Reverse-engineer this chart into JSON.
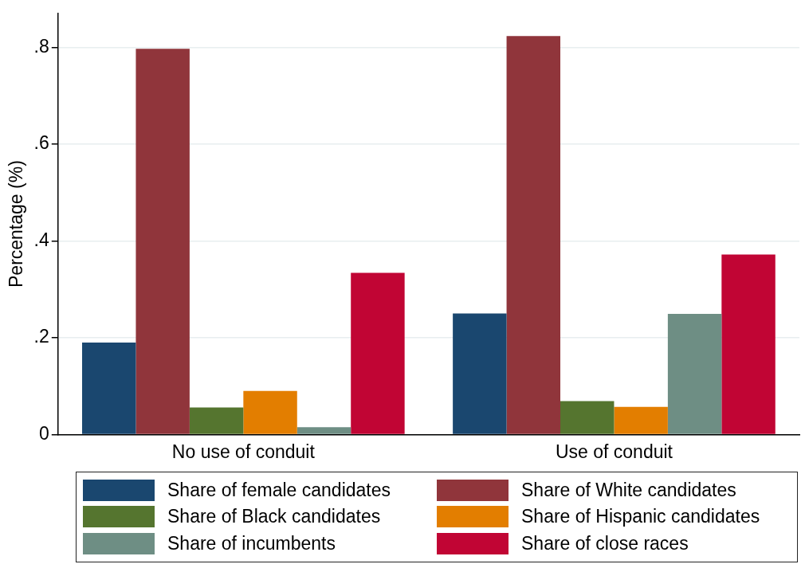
{
  "chart_data": {
    "type": "bar",
    "ylabel": "Percentage (%)",
    "categories": [
      "No use of conduit",
      "Use of conduit"
    ],
    "series": [
      {
        "name": "Share of female candidates",
        "color": "#1a476f",
        "values": [
          0.19,
          0.25
        ]
      },
      {
        "name": "Share of White candidates",
        "color": "#90353b",
        "values": [
          0.797,
          0.823
        ]
      },
      {
        "name": "Share of Black candidates",
        "color": "#55752f",
        "values": [
          0.056,
          0.069
        ]
      },
      {
        "name": "Share of Hispanic candidates",
        "color": "#e37e00",
        "values": [
          0.09,
          0.057
        ]
      },
      {
        "name": "Share of incumbents",
        "color": "#6e8e84",
        "values": [
          0.015,
          0.249
        ]
      },
      {
        "name": "Share of close races",
        "color": "#c10534",
        "values": [
          0.334,
          0.372
        ]
      }
    ],
    "ylim": [
      0,
      0.87
    ],
    "yticks": [
      0,
      {
        "value": 0.2,
        "label": ".2"
      },
      {
        "value": 0.4,
        "label": ".4"
      },
      {
        "value": 0.6,
        "label": ".6"
      },
      {
        "value": 0.8,
        "label": ".8"
      }
    ],
    "grid": "y",
    "legend": "bottom"
  }
}
